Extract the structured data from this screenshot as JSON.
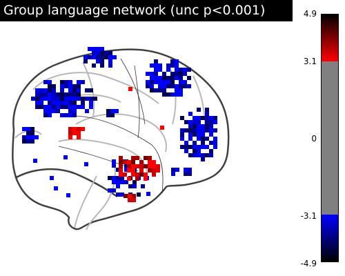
{
  "title": "Group language network (unc p<0.001)",
  "colorbar": {
    "ticks": [
      "4.9",
      "3.1",
      "0",
      "-3.1",
      "-4.9"
    ],
    "colormap": {
      "pos_max": "#000000",
      "pos_mid": "#ff0000",
      "threshold_band": "#808080",
      "neg_mid": "#0000ff",
      "neg_max": "#000000"
    }
  },
  "brain": {
    "outline_color": "#404040",
    "sulci_color": "#b8b8b8",
    "view": "sagittal glass brain"
  }
}
